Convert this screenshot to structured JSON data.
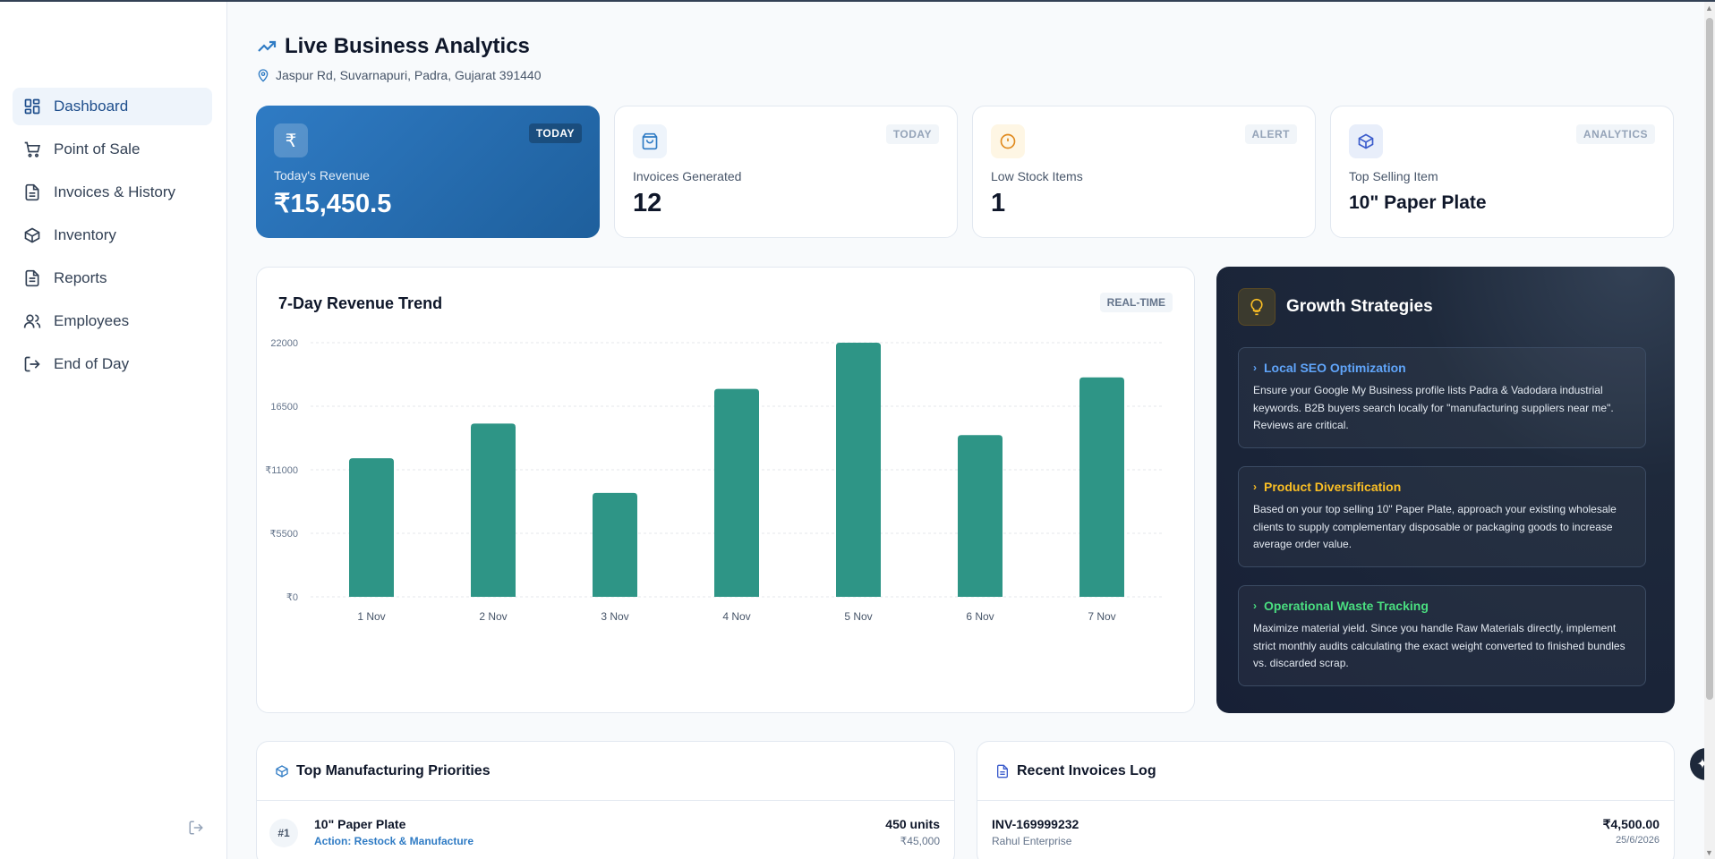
{
  "sidebar": {
    "items": [
      {
        "label": "Dashboard",
        "icon": "dashboard-icon",
        "active": true
      },
      {
        "label": "Point of Sale",
        "icon": "cart-icon"
      },
      {
        "label": "Invoices & History",
        "icon": "document-icon"
      },
      {
        "label": "Inventory",
        "icon": "box-icon"
      },
      {
        "label": "Reports",
        "icon": "report-icon"
      },
      {
        "label": "Employees",
        "icon": "users-icon"
      },
      {
        "label": "End of Day",
        "icon": "exit-icon"
      }
    ]
  },
  "header": {
    "title": "Live Business Analytics",
    "address": "Jaspur Rd, Suvarnapuri, Padra, Gujarat 391440"
  },
  "stats": [
    {
      "badge": "TODAY",
      "label": "Today's Revenue",
      "value": "₹15,450.5",
      "icon_text": "₹"
    },
    {
      "badge": "TODAY",
      "label": "Invoices Generated",
      "value": "12"
    },
    {
      "badge": "ALERT",
      "label": "Low Stock Items",
      "value": "1"
    },
    {
      "badge": "ANALYTICS",
      "label": "Top Selling Item",
      "value": "10\" Paper Plate"
    }
  ],
  "chart_card": {
    "title": "7-Day Revenue Trend",
    "badge": "REAL-TIME"
  },
  "chart_data": {
    "type": "bar",
    "title": "7-Day Revenue Trend",
    "categories": [
      "1 Nov",
      "2 Nov",
      "3 Nov",
      "4 Nov",
      "5 Nov",
      "6 Nov",
      "7 Nov"
    ],
    "values": [
      12000,
      15000,
      9000,
      18000,
      22000,
      14000,
      19000
    ],
    "yticks": [
      "₹0",
      "₹5500",
      "₹11000",
      "16500",
      "22000"
    ],
    "ylim": [
      0,
      22000
    ],
    "grid": true,
    "color": "#2e9586"
  },
  "growth": {
    "title": "Growth Strategies",
    "items": [
      {
        "title": "Local SEO Optimization",
        "color": "#60a5fa",
        "text": "Ensure your Google My Business profile lists Padra & Vadodara industrial keywords. B2B buyers search locally for \"manufacturing suppliers near me\". Reviews are critical."
      },
      {
        "title": "Product Diversification",
        "color": "#fbbf24",
        "text": "Based on your top selling 10\" Paper Plate, approach your existing wholesale clients to supply complementary disposable or packaging goods to increase average order value."
      },
      {
        "title": "Operational Waste Tracking",
        "color": "#4ade80",
        "text": "Maximize material yield. Since you handle Raw Materials directly, implement strict monthly audits calculating the exact weight converted to finished bundles vs. discarded scrap."
      }
    ]
  },
  "priorities": {
    "title": "Top Manufacturing Priorities",
    "rows": [
      {
        "rank": "#1",
        "name": "10\" Paper Plate",
        "action": "Action: Restock & Manufacture",
        "qty": "450 units",
        "amount": "₹45,000"
      }
    ]
  },
  "invoices": {
    "title": "Recent Invoices Log",
    "rows": [
      {
        "id": "INV-169999232",
        "customer": "Rahul Enterprise",
        "amount": "₹4,500.00",
        "date": "25/6/2026"
      }
    ]
  }
}
